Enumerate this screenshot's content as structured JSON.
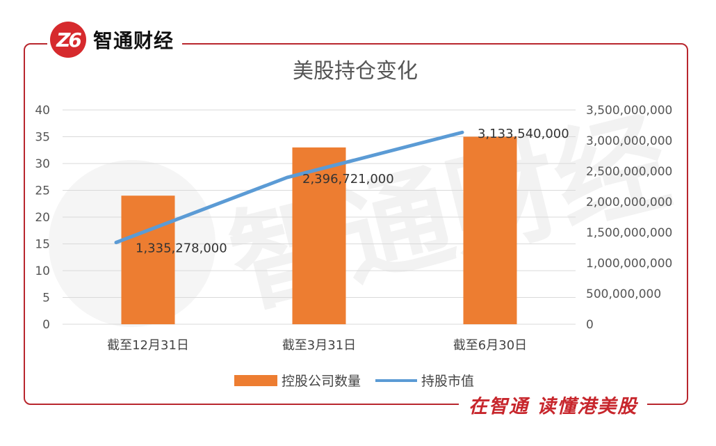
{
  "brand": {
    "logo_mark": "Z6",
    "logo_name": "智通财经",
    "slogan": "在智通  读懂港美股"
  },
  "watermark": {
    "text": "智通财经"
  },
  "colors": {
    "bar": "#ed7d31",
    "line": "#5b9bd5",
    "frame": "#b8262d",
    "grid": "#d9d9d9"
  },
  "chart_data": {
    "type": "bar",
    "title": "美股持仓变化",
    "categories": [
      "截至12月31日",
      "截至3月31日",
      "截至6月30日"
    ],
    "series": [
      {
        "name": "控股公司数量",
        "type": "bar",
        "axis": "left",
        "values": [
          24,
          33,
          35
        ]
      },
      {
        "name": "持股市值",
        "type": "line",
        "axis": "right",
        "values": [
          1335278000,
          2396721000,
          3133540000
        ],
        "labels": [
          "1,335,278,000",
          "2,396,721,000",
          "3,133,540,000"
        ]
      }
    ],
    "y_left": {
      "min": 0,
      "max": 40,
      "ticks": [
        "0",
        "5",
        "10",
        "15",
        "20",
        "25",
        "30",
        "35",
        "40"
      ]
    },
    "y_right": {
      "min": 0,
      "max": 3500000000,
      "ticks": [
        "0",
        "500,000,000",
        "1,000,000,000",
        "1,500,000,000",
        "2,000,000,000",
        "2,500,000,000",
        "3,000,000,000",
        "3,500,000,000"
      ]
    },
    "grid": true,
    "legend": "bottom"
  }
}
